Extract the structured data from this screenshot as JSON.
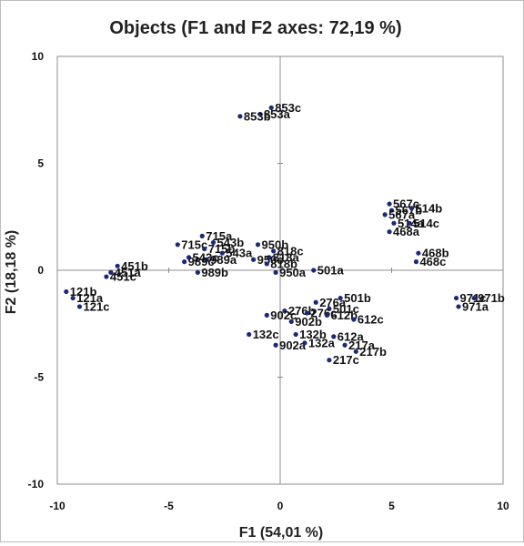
{
  "chart_data": {
    "type": "scatter",
    "title": "Objects (F1 and F2 axes: 72,19 %)",
    "xlabel": "F1 (54,01 %)",
    "ylabel": "F2 (18,18 %)",
    "xlim": [
      -10,
      10
    ],
    "ylim": [
      -10,
      10
    ],
    "xticks": [
      "-10",
      "-5",
      "0",
      "5",
      "10"
    ],
    "yticks": [
      "10",
      "5",
      "0",
      "-5",
      "-10"
    ],
    "grid": false,
    "points": [
      {
        "label": "853c",
        "x": -0.4,
        "y": 7.6
      },
      {
        "label": "853a",
        "x": -0.9,
        "y": 7.3
      },
      {
        "label": "853b",
        "x": -1.8,
        "y": 7.2
      },
      {
        "label": "567c",
        "x": 4.9,
        "y": 3.1
      },
      {
        "label": "567b",
        "x": 5.0,
        "y": 2.8
      },
      {
        "label": "514b",
        "x": 5.9,
        "y": 2.9
      },
      {
        "label": "567a",
        "x": 4.7,
        "y": 2.6
      },
      {
        "label": "514a",
        "x": 5.1,
        "y": 2.2
      },
      {
        "label": "514c",
        "x": 5.8,
        "y": 2.2
      },
      {
        "label": "468a",
        "x": 4.9,
        "y": 1.8
      },
      {
        "label": "468b",
        "x": 6.2,
        "y": 0.8
      },
      {
        "label": "468c",
        "x": 6.1,
        "y": 0.4
      },
      {
        "label": "715a",
        "x": -3.5,
        "y": 1.6
      },
      {
        "label": "543b",
        "x": -3.0,
        "y": 1.3
      },
      {
        "label": "715c",
        "x": -4.6,
        "y": 1.2
      },
      {
        "label": "715b",
        "x": -3.4,
        "y": 1.0
      },
      {
        "label": "543a",
        "x": -2.6,
        "y": 0.8
      },
      {
        "label": "543c",
        "x": -4.1,
        "y": 0.6
      },
      {
        "label": "989a",
        "x": -3.3,
        "y": 0.5
      },
      {
        "label": "989c",
        "x": -4.3,
        "y": 0.4
      },
      {
        "label": "989b",
        "x": -3.7,
        "y": -0.1
      },
      {
        "label": "950b",
        "x": -1.0,
        "y": 1.2
      },
      {
        "label": "818c",
        "x": -0.3,
        "y": 0.9
      },
      {
        "label": "818a",
        "x": -0.5,
        "y": 0.6
      },
      {
        "label": "950c",
        "x": -1.2,
        "y": 0.5
      },
      {
        "label": "818b",
        "x": -0.6,
        "y": 0.3
      },
      {
        "label": "950a",
        "x": -0.2,
        "y": -0.1
      },
      {
        "label": "501a",
        "x": 1.5,
        "y": 0.0
      },
      {
        "label": "451b",
        "x": -7.3,
        "y": 0.2
      },
      {
        "label": "451a",
        "x": -7.6,
        "y": -0.1
      },
      {
        "label": "451c",
        "x": -7.8,
        "y": -0.3
      },
      {
        "label": "121b",
        "x": -9.6,
        "y": -1.0
      },
      {
        "label": "121a",
        "x": -9.3,
        "y": -1.3
      },
      {
        "label": "121c",
        "x": -9.0,
        "y": -1.7
      },
      {
        "label": "971c",
        "x": 7.9,
        "y": -1.3
      },
      {
        "label": "971b",
        "x": 8.7,
        "y": -1.3
      },
      {
        "label": "971a",
        "x": 8.0,
        "y": -1.7
      },
      {
        "label": "501b",
        "x": 2.7,
        "y": -1.3
      },
      {
        "label": "276a",
        "x": 1.6,
        "y": -1.5
      },
      {
        "label": "501c",
        "x": 2.2,
        "y": -1.8
      },
      {
        "label": "276b",
        "x": 0.2,
        "y": -1.9
      },
      {
        "label": "276c",
        "x": 1.2,
        "y": -2.0
      },
      {
        "label": "612b",
        "x": 2.1,
        "y": -2.1
      },
      {
        "label": "612c",
        "x": 3.3,
        "y": -2.3
      },
      {
        "label": "902c",
        "x": -0.6,
        "y": -2.1
      },
      {
        "label": "902b",
        "x": 0.5,
        "y": -2.4
      },
      {
        "label": "132c",
        "x": -1.4,
        "y": -3.0
      },
      {
        "label": "132b",
        "x": 0.7,
        "y": -3.0
      },
      {
        "label": "612a",
        "x": 2.4,
        "y": -3.1
      },
      {
        "label": "902a",
        "x": -0.2,
        "y": -3.5
      },
      {
        "label": "132a",
        "x": 1.1,
        "y": -3.4
      },
      {
        "label": "217a",
        "x": 2.9,
        "y": -3.5
      },
      {
        "label": "217b",
        "x": 3.4,
        "y": -3.8
      },
      {
        "label": "217c",
        "x": 2.2,
        "y": -4.2
      }
    ]
  }
}
